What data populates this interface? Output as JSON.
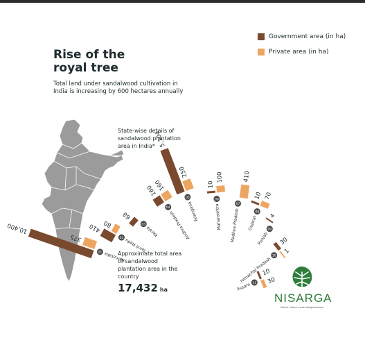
{
  "header": {
    "title_line1": "Rise of the",
    "title_line2": "royal tree",
    "subtitle": "Total land under sandalwood cultivation in India is increasing by 600 hectares annually"
  },
  "map": {
    "label": "State-wise details of sandalwood plantation area in India*",
    "total_label": "Approximate total area of sandalwood plantation area in the country",
    "total_value": "17,432",
    "total_unit": "ha"
  },
  "legend": {
    "government": "Government area (in ha)",
    "private": "Private area (in ha)"
  },
  "colors": {
    "government": "#7a4a2e",
    "private": "#eda662",
    "map": "#9b9b9b",
    "badge": "#4a4a4a",
    "brand": "#2f7d3a"
  },
  "brand": {
    "name": "NISARGA",
    "tagline": "Where nature meets Neighborhood"
  },
  "chart_data": {
    "type": "bar",
    "categories": [
      "Karnataka",
      "Tamil Nadu",
      "Kerala",
      "Andhra Pradesh",
      "Telangana",
      "Maharashtra",
      "Madhya Pradesh",
      "Gujarat",
      "Punjab",
      "Himachal Pradesh",
      "Assam"
    ],
    "ranks": [
      "01",
      "02",
      "03",
      "04",
      "05",
      "06",
      "07",
      "08",
      "09",
      "10",
      "11"
    ],
    "series": [
      {
        "name": "Government area (in ha)",
        "values": [
          10400,
          410,
          68,
          160,
          5104,
          10,
          null,
          10,
          4,
          30,
          10
        ],
        "labels": [
          "10,400",
          "410",
          "68",
          "160",
          "5,104",
          "10",
          "",
          "10",
          "4",
          "30",
          "10"
        ]
      },
      {
        "name": "Private area (in ha)",
        "values": [
          375,
          80,
          null,
          160,
          250,
          100,
          410,
          70,
          null,
          1,
          30
        ],
        "labels": [
          "375",
          "80",
          "",
          "160",
          "250",
          "100",
          "410",
          "70",
          "",
          "1",
          "30"
        ]
      }
    ]
  }
}
